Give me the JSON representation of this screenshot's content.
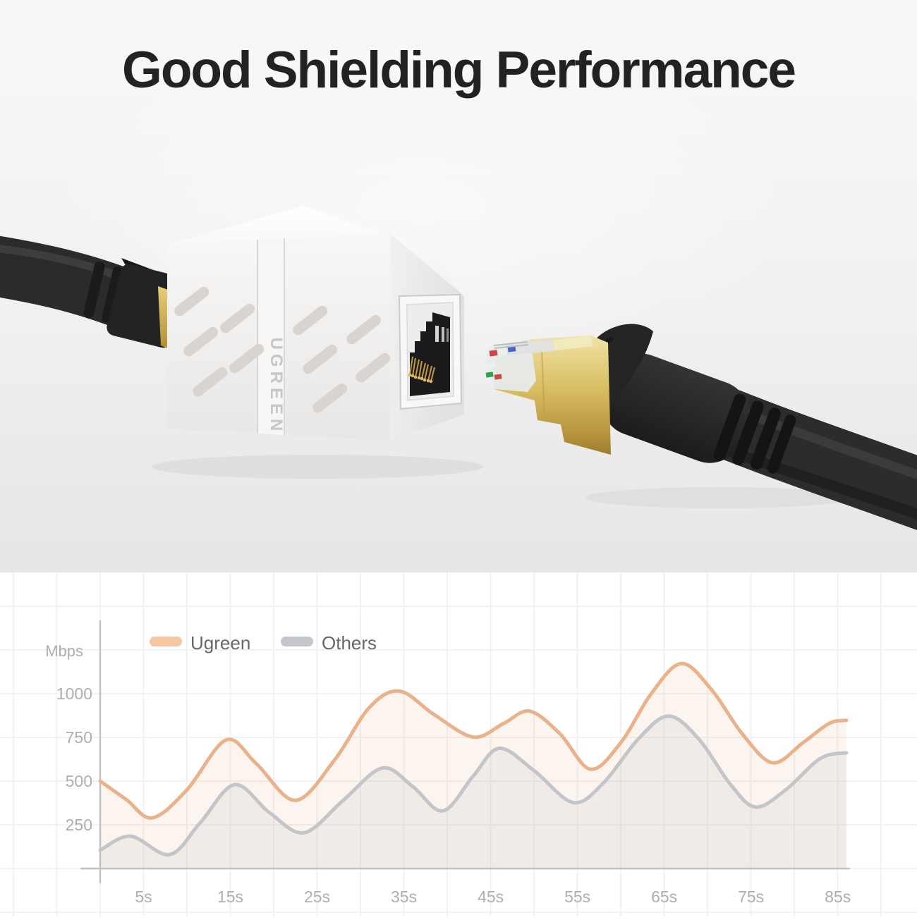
{
  "title": "Good Shielding Performance",
  "product": {
    "logo_text": "UGREEN",
    "description": "White RJ45 inline coupler joining two black shielded Ethernet cables; gold-plated RJ45 plug approaching the socket",
    "colors": {
      "body_white": "#f4f3f2",
      "cable_black": "#2b2b2b",
      "gold": "#d3b759"
    }
  },
  "chart_data": {
    "type": "line",
    "title": "",
    "ylabel": "Mbps",
    "x_unit": "s",
    "x_ticks": [
      "5s",
      "15s",
      "25s",
      "35s",
      "45s",
      "55s",
      "65s",
      "75s",
      "85s"
    ],
    "x_tick_values": [
      5,
      15,
      25,
      35,
      45,
      55,
      65,
      75,
      85
    ],
    "y_ticks": [
      "250",
      "500",
      "750",
      "1000"
    ],
    "y_tick_values": [
      250,
      500,
      750,
      1000
    ],
    "x_range": [
      0,
      86
    ],
    "y_range": [
      0,
      1500
    ],
    "grid": true,
    "legend_position": "top-left",
    "axis_color": "#c2c2c6",
    "grid_color": "#f2f1f3",
    "tick_label_color": "#aeaeb2",
    "legend_text_color": "#68686b",
    "series": [
      {
        "name": "Ugreen",
        "color": "#eab28a",
        "swatch": "#f5c8a3",
        "fill": "rgba(236,178,138,0.14)",
        "points": [
          [
            0,
            500
          ],
          [
            3,
            395
          ],
          [
            6,
            290
          ],
          [
            10,
            450
          ],
          [
            14.5,
            735
          ],
          [
            18,
            600
          ],
          [
            22.5,
            390
          ],
          [
            27,
            620
          ],
          [
            31,
            920
          ],
          [
            34.5,
            1015
          ],
          [
            38.5,
            880
          ],
          [
            43,
            752
          ],
          [
            46.5,
            830
          ],
          [
            49.5,
            900
          ],
          [
            53,
            770
          ],
          [
            56.5,
            568
          ],
          [
            60,
            720
          ],
          [
            63.5,
            1000
          ],
          [
            67,
            1172
          ],
          [
            70.5,
            1020
          ],
          [
            74,
            770
          ],
          [
            77.5,
            605
          ],
          [
            81,
            720
          ],
          [
            84,
            830
          ],
          [
            86,
            848
          ]
        ]
      },
      {
        "name": "Others",
        "color": "#c2c5c9",
        "swatch": "#c3c6ca",
        "fill": "rgba(186,190,196,0.16)",
        "points": [
          [
            0,
            105
          ],
          [
            3.5,
            185
          ],
          [
            8,
            80
          ],
          [
            11.5,
            260
          ],
          [
            15.5,
            480
          ],
          [
            19.5,
            320
          ],
          [
            23.5,
            205
          ],
          [
            28,
            390
          ],
          [
            32.5,
            575
          ],
          [
            36,
            470
          ],
          [
            39.5,
            330
          ],
          [
            43,
            530
          ],
          [
            46,
            688
          ],
          [
            50,
            560
          ],
          [
            54.5,
            378
          ],
          [
            58,
            490
          ],
          [
            62,
            740
          ],
          [
            65.5,
            872
          ],
          [
            69,
            740
          ],
          [
            72.5,
            490
          ],
          [
            75.5,
            352
          ],
          [
            79,
            450
          ],
          [
            83,
            630
          ],
          [
            86,
            662
          ]
        ]
      }
    ]
  }
}
